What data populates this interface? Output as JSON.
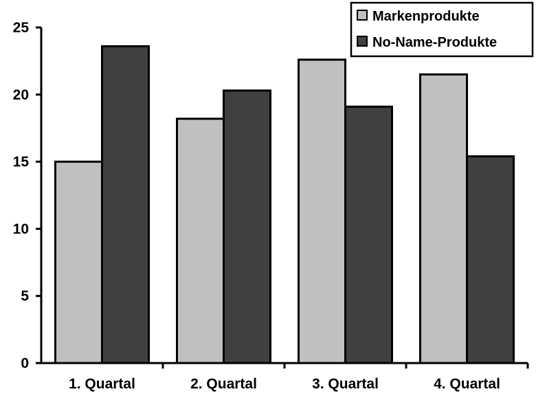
{
  "chart_data": {
    "type": "bar",
    "categories": [
      "1. Quartal",
      "2. Quartal",
      "3. Quartal",
      "4. Quartal"
    ],
    "series": [
      {
        "name": "Markenprodukte",
        "values": [
          15.0,
          18.2,
          22.6,
          21.5
        ],
        "color": "#c0c0c0"
      },
      {
        "name": "No-Name-Produkte",
        "values": [
          23.6,
          20.3,
          19.1,
          15.4
        ],
        "color": "#404040"
      }
    ],
    "yticks": [
      0,
      5,
      10,
      15,
      20,
      25
    ],
    "ylim": [
      0,
      25
    ],
    "title": "",
    "xlabel": "",
    "ylabel": "",
    "grid": false,
    "legend_position": "top-right"
  }
}
